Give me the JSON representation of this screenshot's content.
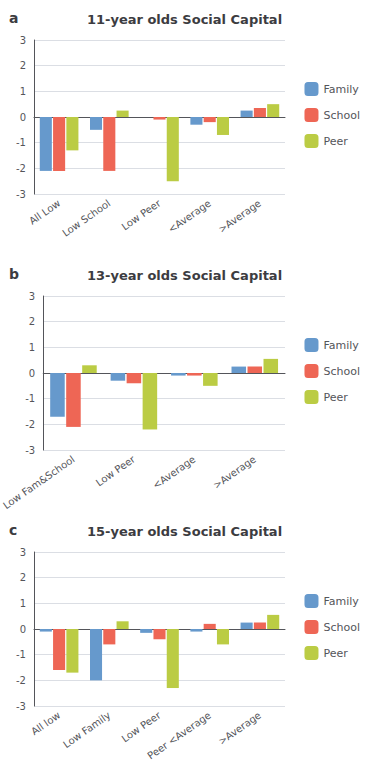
{
  "chart_data": [
    {
      "type": "bar",
      "title": "11-year olds Social Capital",
      "annotations": [
        "a"
      ],
      "categories": [
        "All Low",
        "Low School",
        "Low Peer",
        "<Average",
        ">Average"
      ],
      "series": [
        {
          "name": "Family",
          "color": "#6699CC",
          "values": [
            -2.1,
            -0.5,
            0.0,
            -0.3,
            0.25
          ]
        },
        {
          "name": "School",
          "color": "#EE6655",
          "values": [
            -2.1,
            -2.1,
            -0.1,
            -0.2,
            0.35
          ]
        },
        {
          "name": "Peer",
          "color": "#BBCC44",
          "values": [
            -1.3,
            0.25,
            -2.5,
            -0.7,
            0.5
          ]
        }
      ],
      "ylim": [
        -3,
        3
      ],
      "yticks": [
        -3,
        -2,
        -1,
        0,
        1,
        2,
        3
      ],
      "grid": true,
      "legend": "right"
    },
    {
      "type": "bar",
      "title": "13-year olds Social Capital",
      "annotations": [
        "b"
      ],
      "categories": [
        "Low Fam&School",
        "Low Peer",
        "<Average",
        ">Average"
      ],
      "series": [
        {
          "name": "Family",
          "color": "#6699CC",
          "values": [
            -1.7,
            -0.3,
            -0.1,
            0.25
          ]
        },
        {
          "name": "School",
          "color": "#EE6655",
          "values": [
            -2.1,
            -0.4,
            -0.1,
            0.25
          ]
        },
        {
          "name": "Peer",
          "color": "#BBCC44",
          "values": [
            0.3,
            -2.2,
            -0.5,
            0.55
          ]
        }
      ],
      "ylim": [
        -3,
        3
      ],
      "yticks": [
        -3,
        -2,
        -1,
        0,
        1,
        2,
        3
      ],
      "grid": true,
      "legend": "right"
    },
    {
      "type": "bar",
      "title": "15-year olds Social Capital",
      "annotations": [
        "c"
      ],
      "categories": [
        "All low",
        "Low Family",
        "Low Peer",
        "Peer <Average",
        ">Average"
      ],
      "series": [
        {
          "name": "Family",
          "color": "#6699CC",
          "values": [
            -0.1,
            -2.0,
            -0.15,
            -0.1,
            0.25
          ]
        },
        {
          "name": "School",
          "color": "#EE6655",
          "values": [
            -1.6,
            -0.6,
            -0.4,
            0.2,
            0.25
          ]
        },
        {
          "name": "Peer",
          "color": "#BBCC44",
          "values": [
            -1.7,
            0.3,
            -2.3,
            -0.6,
            0.55
          ]
        }
      ],
      "ylim": [
        -3,
        3
      ],
      "yticks": [
        -3,
        -2,
        -1,
        0,
        1,
        2,
        3
      ],
      "grid": true,
      "legend": "right"
    }
  ]
}
